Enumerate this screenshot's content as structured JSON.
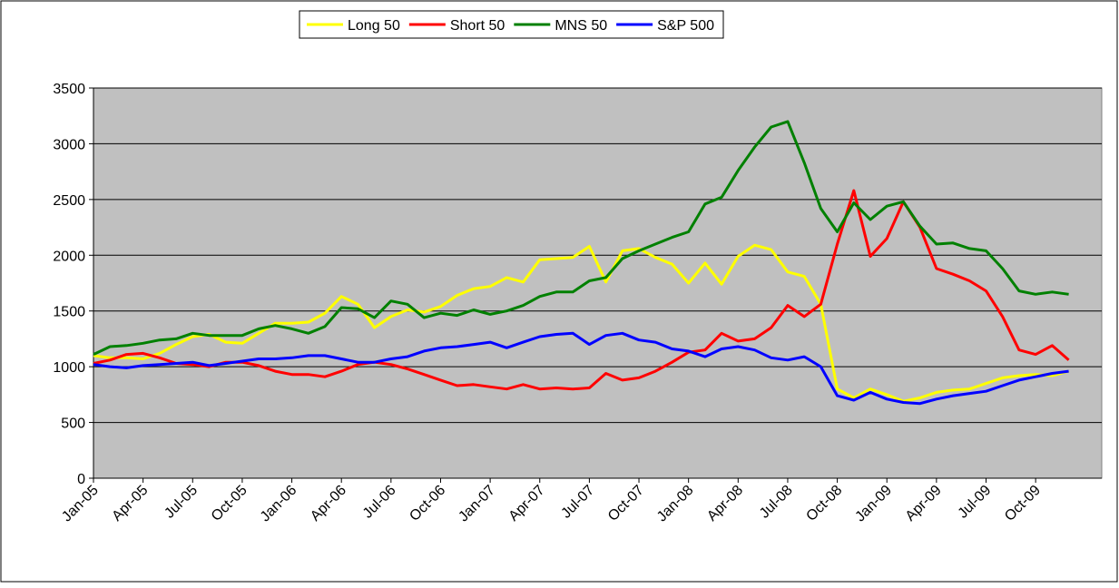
{
  "chart_data": {
    "type": "line",
    "categories": [
      "Jan-05",
      null,
      null,
      "Apr-05",
      null,
      null,
      "Jul-05",
      null,
      null,
      "Oct-05",
      null,
      null,
      "Jan-06",
      null,
      null,
      "Apr-06",
      null,
      null,
      "Jul-06",
      null,
      null,
      "Oct-06",
      null,
      null,
      "Jan-07",
      null,
      null,
      "Apr-07",
      null,
      null,
      "Jul-07",
      null,
      null,
      "Oct-07",
      null,
      null,
      "Jan-08",
      null,
      null,
      "Apr-08",
      null,
      null,
      "Jul-08",
      null,
      null,
      "Oct-08",
      null,
      null,
      "Jan-09",
      null,
      null,
      "Apr-09",
      null,
      null,
      "Jul-09",
      null,
      null,
      "Oct-09",
      null,
      null
    ],
    "series": [
      {
        "name": "Long 50",
        "color": "#ffff00",
        "values": [
          1100,
          1080,
          1080,
          1070,
          1120,
          1200,
          1270,
          1290,
          1220,
          1210,
          1300,
          1390,
          1390,
          1400,
          1480,
          1630,
          1560,
          1350,
          1450,
          1510,
          1490,
          1540,
          1640,
          1700,
          1720,
          1800,
          1760,
          1960,
          1970,
          1980,
          2080,
          1760,
          2040,
          2060,
          1980,
          1920,
          1750,
          1930,
          1740,
          1990,
          2090,
          2050,
          1850,
          1810,
          1560,
          800,
          720,
          800,
          750,
          690,
          720,
          770,
          790,
          800,
          850,
          900,
          920,
          930,
          920,
          960
        ]
      },
      {
        "name": "Short 50",
        "color": "#ff0000",
        "values": [
          1030,
          1060,
          1110,
          1120,
          1080,
          1030,
          1020,
          1000,
          1040,
          1040,
          1010,
          960,
          930,
          930,
          910,
          960,
          1020,
          1040,
          1020,
          980,
          930,
          880,
          830,
          840,
          820,
          800,
          840,
          800,
          810,
          800,
          810,
          940,
          880,
          900,
          960,
          1040,
          1130,
          1150,
          1300,
          1230,
          1250,
          1350,
          1550,
          1450,
          1560,
          2100,
          2580,
          1990,
          2150,
          2480,
          2250,
          1880,
          1830,
          1770,
          1680,
          1450,
          1150,
          1110,
          1190,
          1060
        ]
      },
      {
        "name": "MNS 50",
        "color": "#008000",
        "values": [
          1110,
          1180,
          1190,
          1210,
          1240,
          1250,
          1300,
          1280,
          1280,
          1280,
          1340,
          1370,
          1340,
          1300,
          1360,
          1530,
          1520,
          1440,
          1590,
          1560,
          1440,
          1480,
          1460,
          1510,
          1470,
          1500,
          1550,
          1630,
          1670,
          1670,
          1770,
          1800,
          1970,
          2040,
          2100,
          2160,
          2210,
          2460,
          2520,
          2760,
          2970,
          3150,
          3200,
          2830,
          2420,
          2210,
          2470,
          2320,
          2440,
          2480,
          2260,
          2100,
          2110,
          2060,
          2040,
          1880,
          1680,
          1650,
          1670,
          1650
        ]
      },
      {
        "name": "S&P 500",
        "color": "#0000ff",
        "values": [
          1020,
          1000,
          990,
          1010,
          1020,
          1030,
          1040,
          1010,
          1030,
          1050,
          1070,
          1070,
          1080,
          1100,
          1100,
          1070,
          1040,
          1040,
          1070,
          1090,
          1140,
          1170,
          1180,
          1200,
          1220,
          1170,
          1220,
          1270,
          1290,
          1300,
          1200,
          1280,
          1300,
          1240,
          1220,
          1160,
          1140,
          1090,
          1160,
          1180,
          1150,
          1080,
          1060,
          1090,
          1000,
          740,
          700,
          770,
          710,
          680,
          670,
          710,
          740,
          760,
          780,
          830,
          880,
          910,
          940,
          960
        ]
      }
    ],
    "ylim": [
      0,
      3500
    ],
    "yticks": [
      0,
      500,
      1000,
      1500,
      2000,
      2500,
      3000,
      3500
    ],
    "grid": true,
    "legend": "top",
    "background": "#c0c0c0"
  }
}
